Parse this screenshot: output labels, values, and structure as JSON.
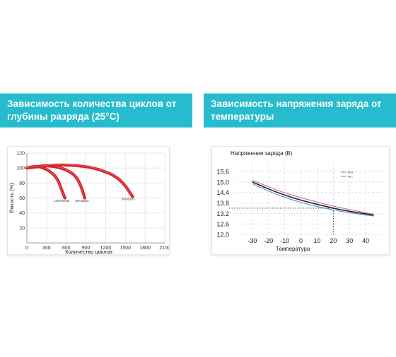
{
  "banners": {
    "left": {
      "line1": "Зависимость количества циклов от",
      "line2": "глубины разряда (25°C)"
    },
    "right": {
      "line1": "Зависимость напряжения заряда от",
      "line2": "температуры"
    }
  },
  "chart_data": [
    {
      "type": "line",
      "title": "",
      "xlabel": "Количество циклов",
      "ylabel": "Ёмкость (%)",
      "xlim": [
        0,
        2100
      ],
      "ylim": [
        0,
        120
      ],
      "xticks": [
        "300",
        "600",
        "900",
        "1200",
        "1500",
        "1800",
        "2100"
      ],
      "xtick_values": [
        300,
        600,
        900,
        1200,
        1500,
        1800,
        2100
      ],
      "origin_label": "0",
      "yticks": [
        "20",
        "40",
        "60",
        "80",
        "100",
        "120"
      ],
      "ytick_values": [
        20,
        40,
        60,
        80,
        100,
        120
      ],
      "grid": true,
      "curve_color": "#d4202a",
      "series": [
        {
          "name": "",
          "x": [
            0,
            150,
            300,
            420,
            480,
            520,
            560,
            580
          ],
          "y": [
            100,
            102,
            98,
            90,
            82,
            73,
            64,
            60
          ]
        },
        {
          "name": "",
          "x": [
            0,
            300,
            550,
            700,
            770,
            820,
            860,
            880
          ],
          "y": [
            100,
            103,
            99,
            92,
            85,
            76,
            66,
            60
          ]
        },
        {
          "name": "",
          "x": [
            0,
            500,
            950,
            1250,
            1400,
            1500,
            1570,
            1610
          ],
          "y": [
            100,
            104,
            101,
            93,
            85,
            76,
            67,
            62
          ]
        }
      ],
      "annotations": [
        {
          "text": "100%DOD",
          "x": 530,
          "y": 55
        },
        {
          "text": "50%DOD",
          "x": 840,
          "y": 55
        },
        {
          "text": "30%DOD",
          "x": 1540,
          "y": 57
        }
      ]
    },
    {
      "type": "line",
      "title": "Напряжение заряда (В)",
      "xlabel": "Температура",
      "ylabel": "",
      "xlim": [
        -40,
        50
      ],
      "ylim": [
        12.0,
        15.8
      ],
      "xticks": [
        "-30",
        "-20",
        "-10",
        "0",
        "10",
        "20",
        "30",
        "40"
      ],
      "xtick_values": [
        -30,
        -20,
        -10,
        0,
        10,
        20,
        30,
        40
      ],
      "yticks": [
        "12.0",
        "12.6",
        "13.2",
        "13.8",
        "14.4",
        "15.0",
        "15.6"
      ],
      "ytick_values": [
        12.0,
        12.6,
        13.2,
        13.8,
        14.4,
        15.0,
        15.6
      ],
      "grid": true,
      "reference": {
        "x": 20,
        "y": 13.5,
        "style": "dotted"
      },
      "legend": {
        "position": "top-right",
        "entries": [
          "Max",
          "Min"
        ]
      },
      "series": [
        {
          "name": "Max",
          "color": "#d06a7e",
          "x": [
            -30,
            -20,
            -10,
            0,
            10,
            20,
            30,
            45
          ],
          "y": [
            15.1,
            14.72,
            14.38,
            14.1,
            13.85,
            13.62,
            13.42,
            13.15
          ]
        },
        {
          "name": "",
          "color": "#1a1f40",
          "x": [
            -30,
            -20,
            -10,
            0,
            10,
            20,
            30,
            45
          ],
          "y": [
            15.0,
            14.6,
            14.25,
            13.96,
            13.72,
            13.5,
            13.32,
            13.1
          ]
        },
        {
          "name": "Min",
          "color": "#5a8fb8",
          "x": [
            -30,
            -20,
            -10,
            0,
            10,
            20,
            30,
            45
          ],
          "y": [
            14.9,
            14.48,
            14.12,
            13.83,
            13.6,
            13.4,
            13.24,
            13.05
          ]
        }
      ]
    }
  ]
}
